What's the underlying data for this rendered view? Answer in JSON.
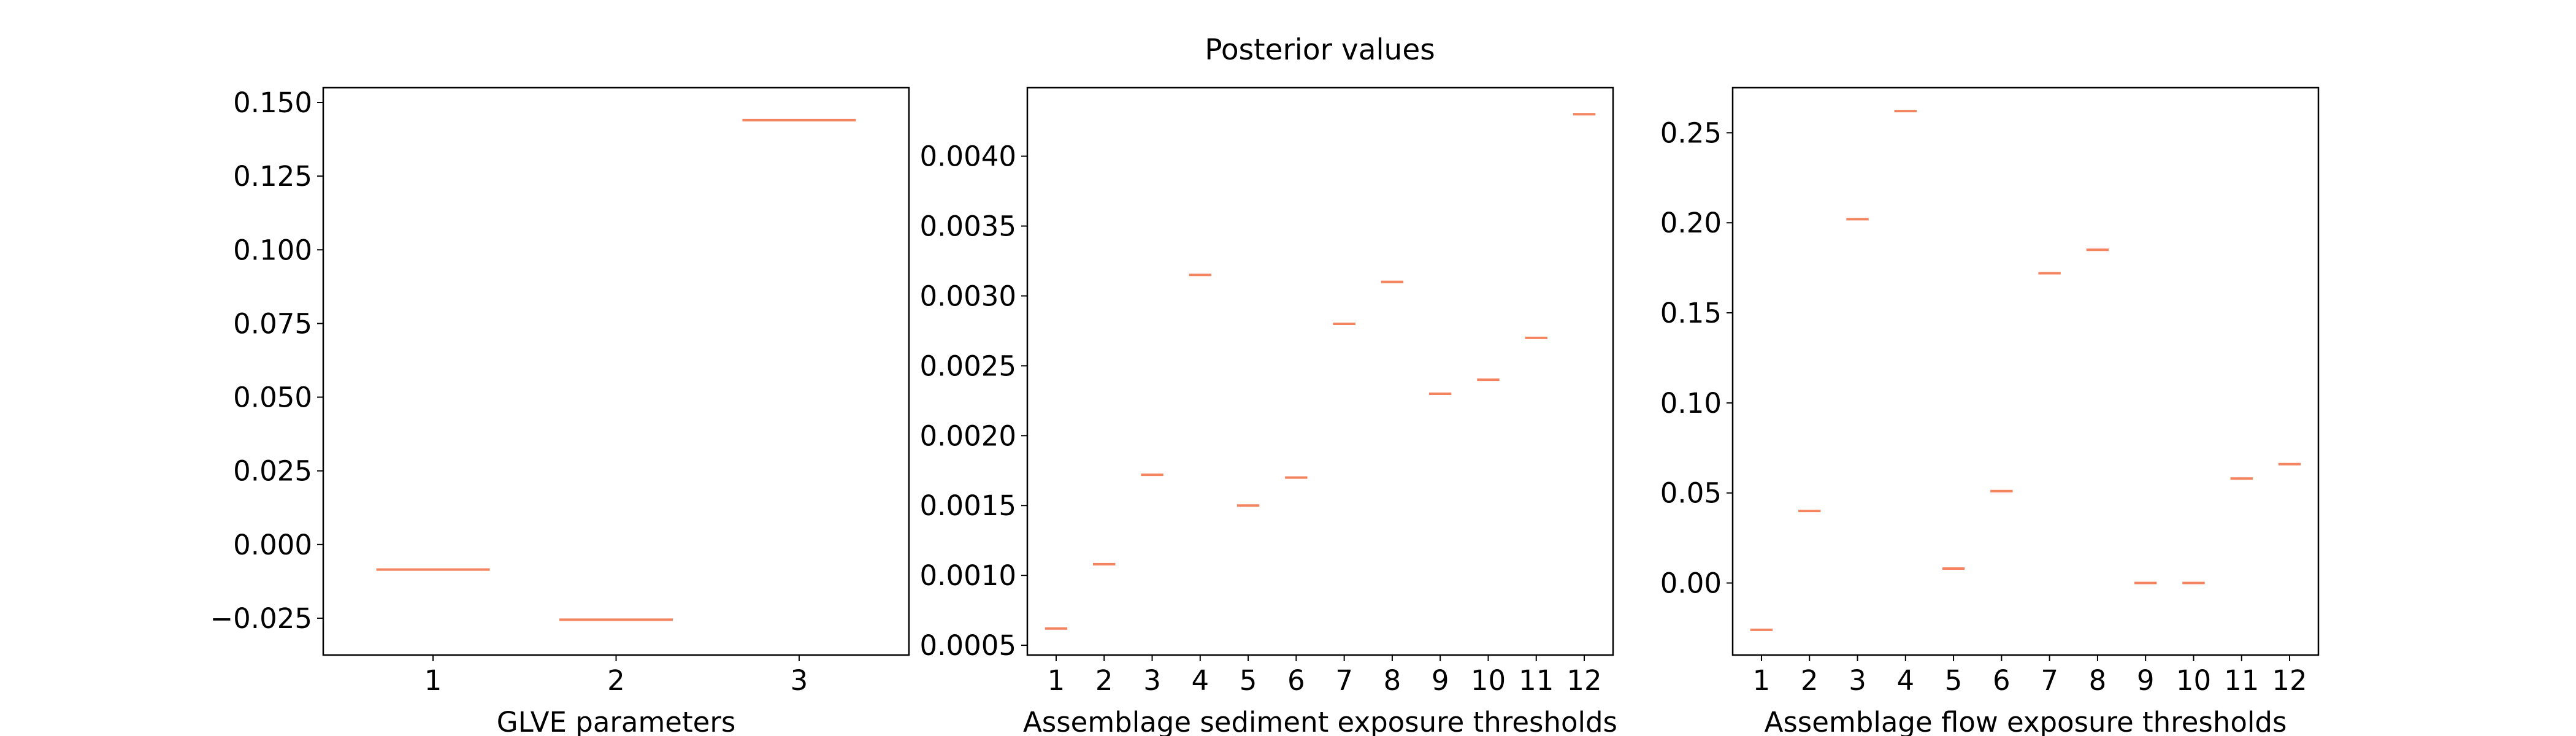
{
  "figure": {
    "title": "Posterior values"
  },
  "chart_data": [
    {
      "type": "scatter",
      "marker": "horizontal-line",
      "title": "",
      "xlabel": "GLVE parameters",
      "ylabel": "",
      "x": [
        1,
        2,
        3
      ],
      "values": [
        -0.0085,
        -0.0255,
        0.144
      ],
      "xlim": [
        0.4,
        3.6
      ],
      "ylim": [
        -0.0375,
        0.155
      ],
      "xticks": [
        "1",
        "2",
        "3"
      ],
      "yticks": [
        "−0.025",
        "0.000",
        "0.025",
        "0.050",
        "0.075",
        "0.100",
        "0.125",
        "0.150"
      ],
      "ytick_values": [
        -0.025,
        0.0,
        0.025,
        0.05,
        0.075,
        0.1,
        0.125,
        0.15
      ],
      "grid": false,
      "color": "#f4845f"
    },
    {
      "type": "scatter",
      "marker": "horizontal-line",
      "title": "",
      "xlabel": "Assemblage sediment exposure thresholds",
      "ylabel": "",
      "x": [
        1,
        2,
        3,
        4,
        5,
        6,
        7,
        8,
        9,
        10,
        11,
        12
      ],
      "values": [
        0.00062,
        0.00108,
        0.00172,
        0.00315,
        0.0015,
        0.0017,
        0.0028,
        0.0031,
        0.0023,
        0.0024,
        0.0027,
        0.0043
      ],
      "xlim": [
        0.4,
        12.6
      ],
      "ylim": [
        0.00043,
        0.00449
      ],
      "xticks": [
        "1",
        "2",
        "3",
        "4",
        "5",
        "6",
        "7",
        "8",
        "9",
        "10",
        "11",
        "12"
      ],
      "yticks": [
        "0.0005",
        "0.0010",
        "0.0015",
        "0.0020",
        "0.0025",
        "0.0030",
        "0.0035",
        "0.0040"
      ],
      "ytick_values": [
        0.0005,
        0.001,
        0.0015,
        0.002,
        0.0025,
        0.003,
        0.0035,
        0.004
      ],
      "grid": false,
      "color": "#f4845f"
    },
    {
      "type": "scatter",
      "marker": "horizontal-line",
      "title": "",
      "xlabel": "Assemblage flow exposure thresholds",
      "ylabel": "",
      "x": [
        1,
        2,
        3,
        4,
        5,
        6,
        7,
        8,
        9,
        10,
        11,
        12
      ],
      "values": [
        -0.026,
        0.04,
        0.202,
        0.262,
        0.008,
        0.051,
        0.172,
        0.185,
        0.0,
        0.0,
        0.058,
        0.066
      ],
      "xlim": [
        0.4,
        12.6
      ],
      "ylim": [
        -0.04,
        0.275
      ],
      "xticks": [
        "1",
        "2",
        "3",
        "4",
        "5",
        "6",
        "7",
        "8",
        "9",
        "10",
        "11",
        "12"
      ],
      "yticks": [
        "0.00",
        "0.05",
        "0.10",
        "0.15",
        "0.20",
        "0.25"
      ],
      "ytick_values": [
        0.0,
        0.05,
        0.1,
        0.15,
        0.2,
        0.25
      ],
      "grid": false,
      "color": "#f4845f"
    }
  ]
}
